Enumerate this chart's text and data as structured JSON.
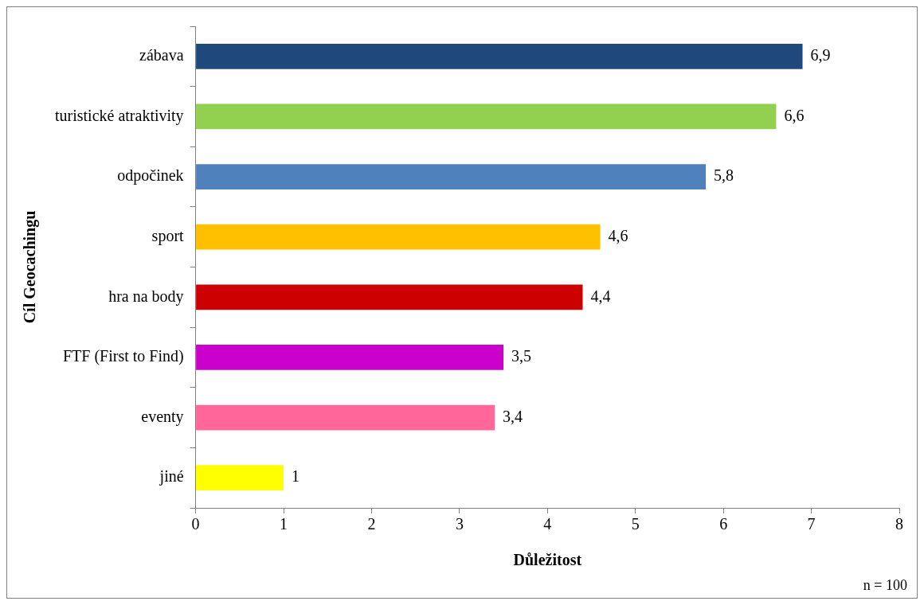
{
  "chart_data": {
    "type": "bar",
    "orientation": "horizontal",
    "xlabel": "Důležitost",
    "ylabel": "Cíl Geocachingu",
    "categories": [
      "zábava",
      "turistické atraktivity",
      "odpočinek",
      "sport",
      "hra na body",
      "FTF (First to Find)",
      "eventy",
      "jiné"
    ],
    "values": [
      6.9,
      6.6,
      5.8,
      4.6,
      4.4,
      3.5,
      3.4,
      1
    ],
    "colors": [
      "#1f497d",
      "#92d050",
      "#4f81bd",
      "#ffc000",
      "#cc0000",
      "#cc00cc",
      "#ff6699",
      "#ffff00"
    ],
    "value_labels": [
      "6,9",
      "6,6",
      "5,8",
      "4,6",
      "4,4",
      "3,5",
      "3,4",
      "1"
    ],
    "xlim": [
      0,
      8
    ],
    "xticks": [
      0,
      1,
      2,
      3,
      4,
      5,
      6,
      7,
      8
    ],
    "grid": false,
    "legend": false,
    "annotations": [
      "n = 100"
    ]
  }
}
